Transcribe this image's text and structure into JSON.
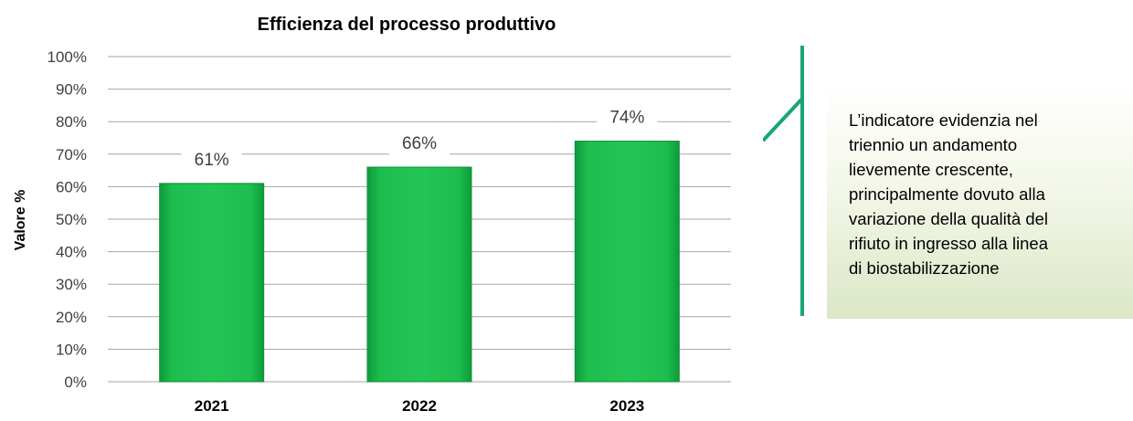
{
  "chart_data": {
    "type": "bar",
    "title": "Efficienza del processo produttivo",
    "ylabel": "Valore %",
    "xlabel": "",
    "categories": [
      "2021",
      "2022",
      "2023"
    ],
    "values": [
      61,
      66,
      74
    ],
    "data_labels": [
      "61%",
      "66%",
      "74%"
    ],
    "ylim": [
      0,
      100
    ],
    "yticks": [
      0,
      10,
      20,
      30,
      40,
      50,
      60,
      70,
      80,
      90,
      100
    ],
    "ytick_labels": [
      "0%",
      "10%",
      "20%",
      "30%",
      "40%",
      "50%",
      "60%",
      "70%",
      "80%",
      "90%",
      "100%"
    ],
    "grid": true,
    "legend": "none",
    "bar_color": "#1fbf4f",
    "bar_edge_color": "#0f8f36",
    "grid_color": "#a6a6a6"
  },
  "note": {
    "text": "L’indicatore evidenzia nel triennio un andamento lievemente crescente, principalmente dovuto alla variazione della qualità del rifiuto in ingresso alla linea di biostabilizzazione",
    "lines": [
      "L’indicatore evidenzia nel",
      "triennio un andamento",
      "lievemente crescente,",
      "principalmente dovuto alla",
      "variazione della qualità del",
      "rifiuto in ingresso alla linea",
      "di biostabilizzazione"
    ],
    "bracket_color": "#17a577"
  }
}
